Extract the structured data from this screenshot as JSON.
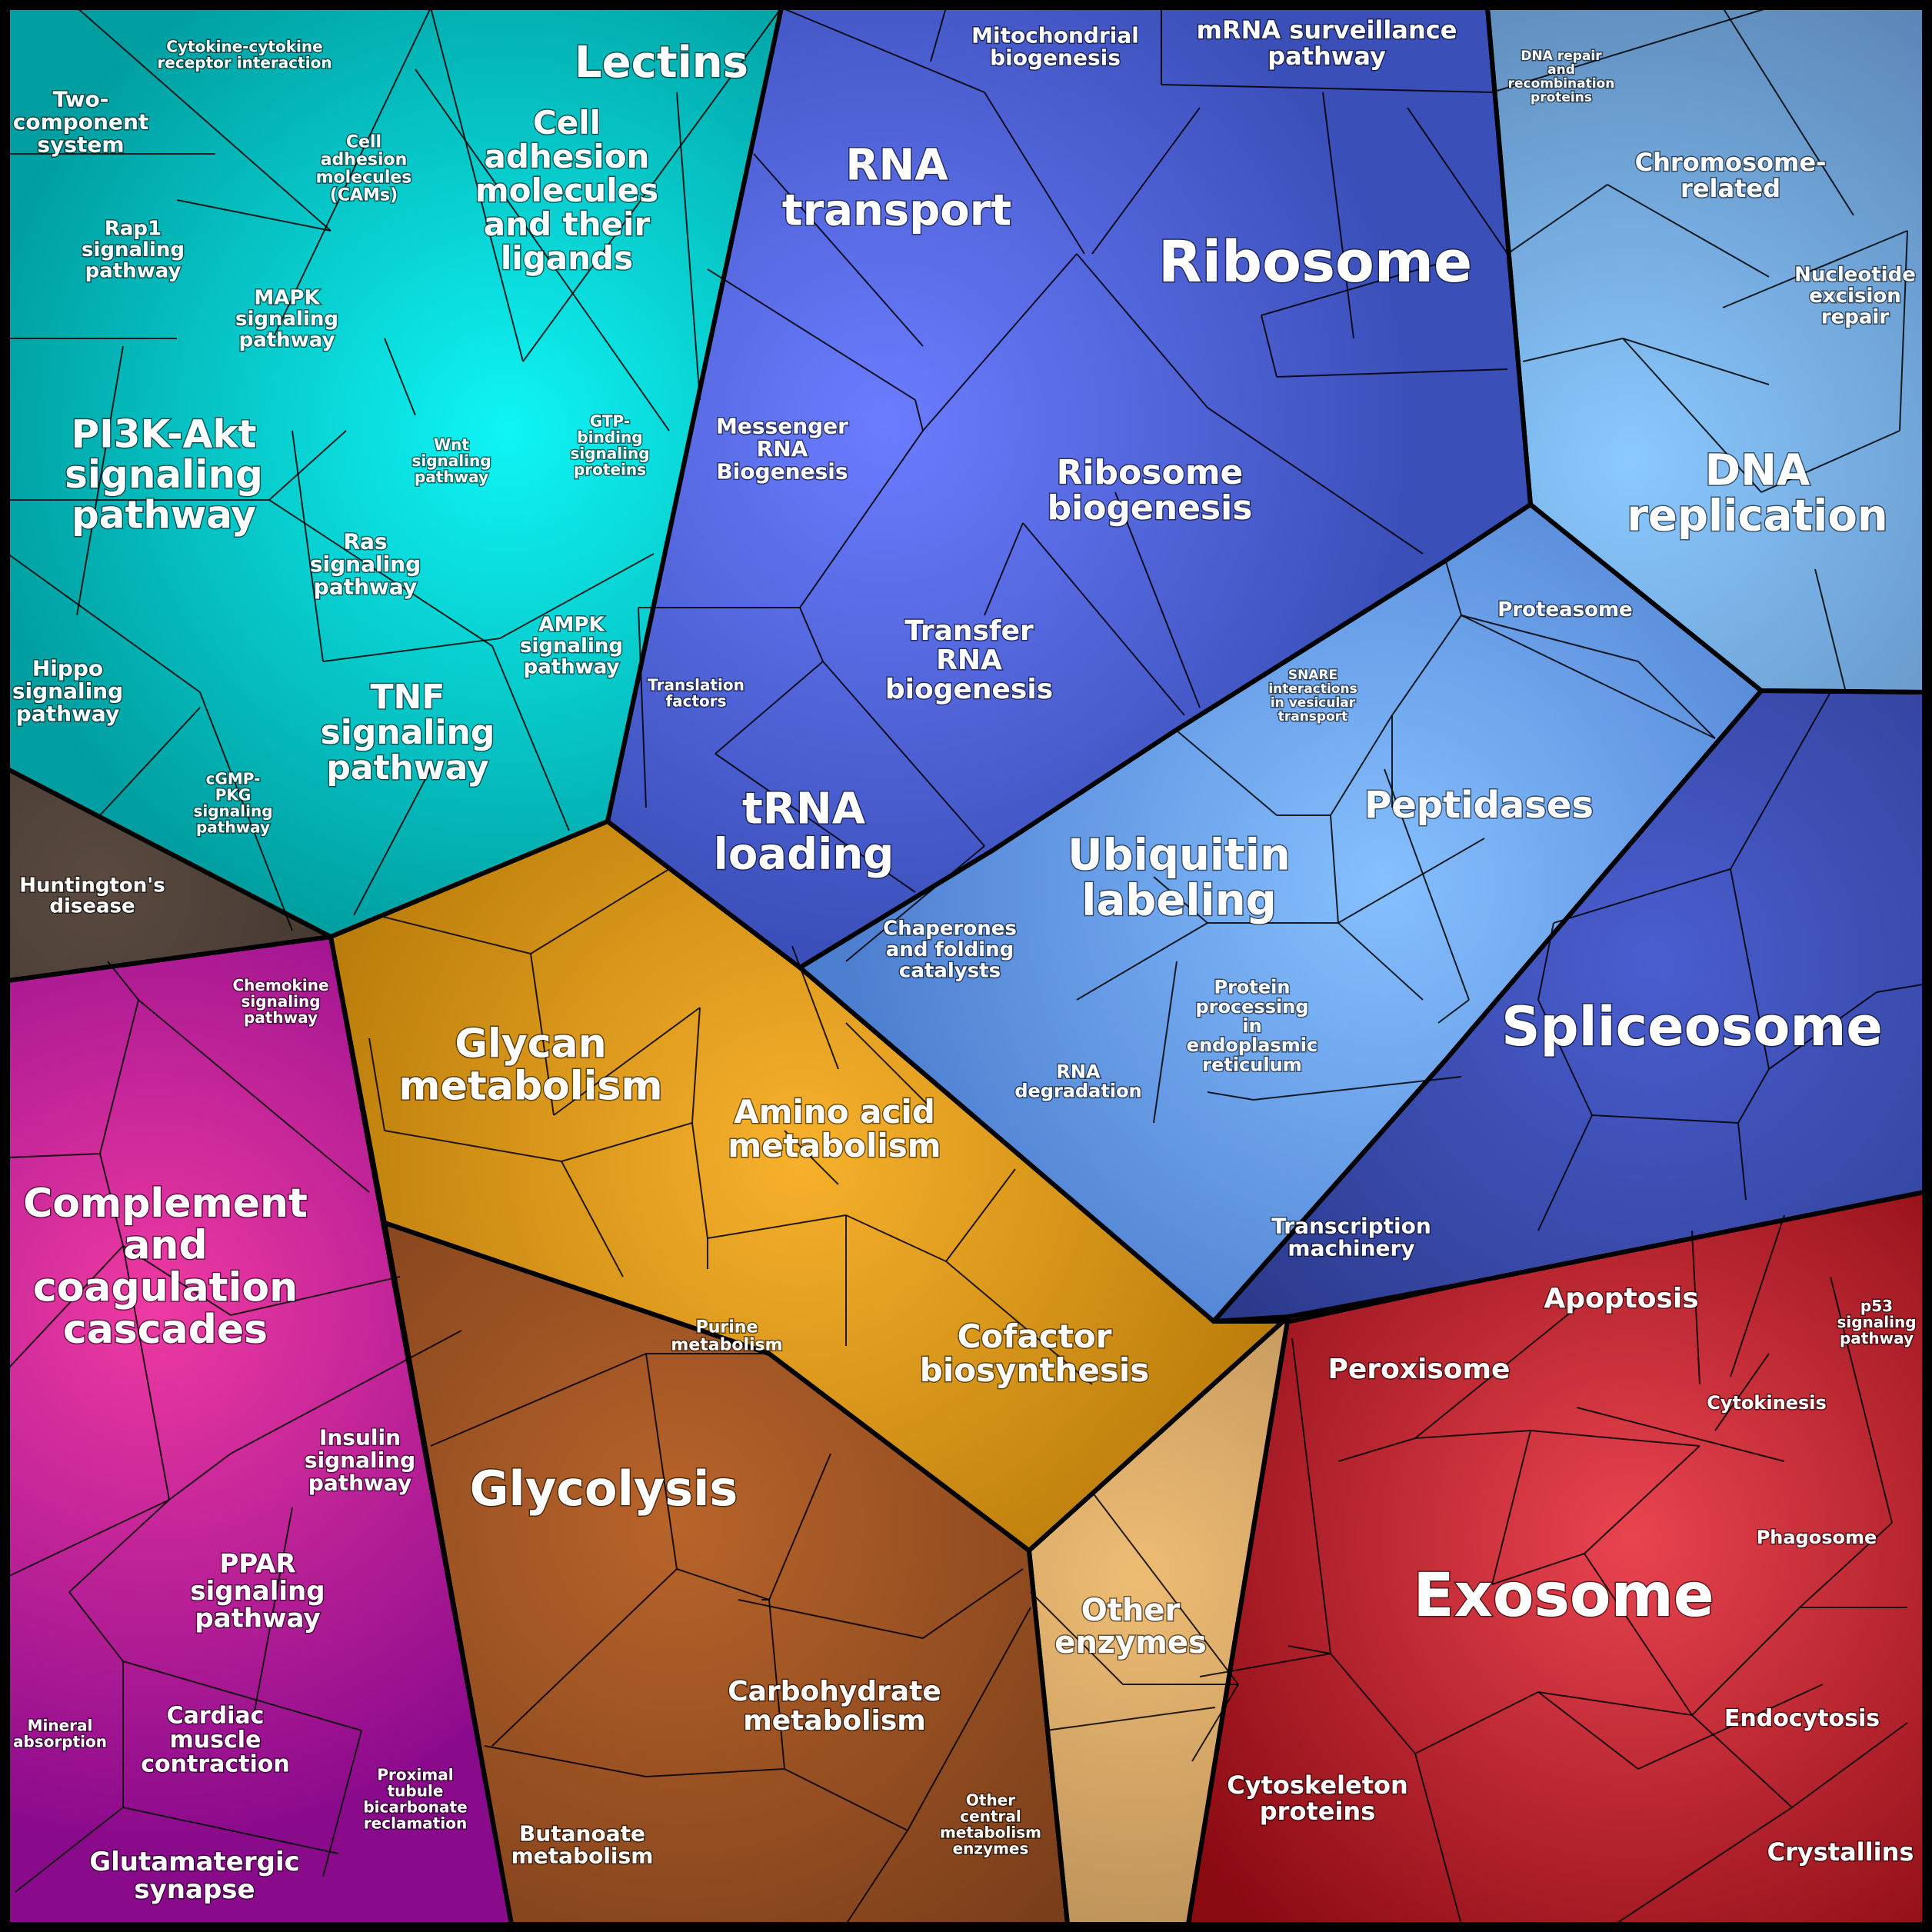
{
  "groups": [
    {
      "id": "signaling",
      "color": "#009ea0",
      "highlight": "#0ff5f5"
    },
    {
      "id": "transcription",
      "color": "#3a4fb8",
      "highlight": "#6b7dff"
    },
    {
      "id": "proteostasis",
      "color": "#4d7fd0",
      "highlight": "#86c0ff"
    },
    {
      "id": "dna",
      "color": "#5b86b6",
      "highlight": "#8ac9ff"
    },
    {
      "id": "splicing",
      "color": "#2c3a8c",
      "highlight": "#4a5ed0"
    },
    {
      "id": "metabolism-amino",
      "color": "#b77a08",
      "highlight": "#f7b12c"
    },
    {
      "id": "carb",
      "color": "#7a3e1a",
      "highlight": "#b8642a"
    },
    {
      "id": "other-enzymes",
      "color": "#a77f4e",
      "highlight": "#eebd74"
    },
    {
      "id": "cell-processes",
      "color": "#8a0a12",
      "highlight": "#e94450"
    },
    {
      "id": "organismal",
      "color": "#8a0a8c",
      "highlight": "#ef3aa2"
    },
    {
      "id": "disease",
      "color": "#2b2420",
      "highlight": "#5a4a40"
    }
  ],
  "labels": {
    "lectins": "Lectins",
    "cytokine_cytokine": "Cytokine-cytokine receptor interaction",
    "two_component": "Two- component system",
    "rap1": "Rap1 signaling pathway",
    "mapk": "MAPK signaling pathway",
    "cams": "Cell adhesion molecules (CAMs)",
    "cell_adhesion": "Cell adhesion molecules and their ligands",
    "gtp_binding": "GTP- binding signaling proteins",
    "wnt": "Wnt signaling pathway",
    "pi3k": "PI3K-Akt signaling pathway",
    "ras": "Ras signaling pathway",
    "ampk": "AMPK signaling pathway",
    "hippo": "Hippo signaling pathway",
    "tnf": "TNF signaling pathway",
    "cgmp": "cGMP- PKG signaling pathway",
    "huntington": "Huntington's disease",
    "mito_biogenesis": "Mitochondrial biogenesis",
    "mrna_surveillance": "mRNA surveillance pathway",
    "rna_transport": "RNA transport",
    "ribosome": "Ribosome",
    "messenger_rna": "Messenger RNA Biogenesis",
    "ribosome_biogenesis": "Ribosome biogenesis",
    "trna_biogenesis": "Transfer RNA biogenesis",
    "translation_factors": "Translation factors",
    "trna_loading": "tRNA loading",
    "dna_repair": "DNA repair and recombination proteins",
    "chromosome": "Chromosome- related",
    "nucleotide_excision": "Nucleotide excision repair",
    "dna_replication": "DNA replication",
    "proteasome": "Proteasome",
    "snare": "SNARE interactions in vesicular transport",
    "peptidases": "Peptidases",
    "ubiquitin": "Ubiquitin labeling",
    "chaperones": "Chaperones and folding catalysts",
    "rna_degradation": "RNA degradation",
    "protein_processing": "Protein processing in endoplasmic reticulum",
    "spliceosome": "Spliceosome",
    "transcription_machinery": "Transcription machinery",
    "chemokine": "Chemokine signaling pathway",
    "complement": "Complement and coagulation cascades",
    "insulin": "Insulin signaling pathway",
    "ppar": "PPAR signaling pathway",
    "mineral": "Mineral absorption",
    "cardiac": "Cardiac muscle contraction",
    "proximal_tubule": "Proximal tubule bicarbonate reclamation",
    "glutamatergic": "Glutamatergic synapse",
    "glycan": "Glycan metabolism",
    "amino_acid": "Amino acid metabolism",
    "purine": "Purine metabolism",
    "cofactor": "Cofactor biosynthesis",
    "glycolysis": "Glycolysis",
    "carbohydrate": "Carbohydrate metabolism",
    "butanoate": "Butanoate metabolism",
    "other_central": "Other central metabolism enzymes",
    "other_enzymes": "Other enzymes",
    "apoptosis": "Apoptosis",
    "p53": "p53 signaling pathway",
    "peroxisome": "Peroxisome",
    "cytokinesis": "Cytokinesis",
    "phagosome": "Phagosome",
    "exosome": "Exosome",
    "endocytosis": "Endocytosis",
    "cytoskeleton": "Cytoskeleton proteins",
    "crystallins": "Crystallins"
  }
}
